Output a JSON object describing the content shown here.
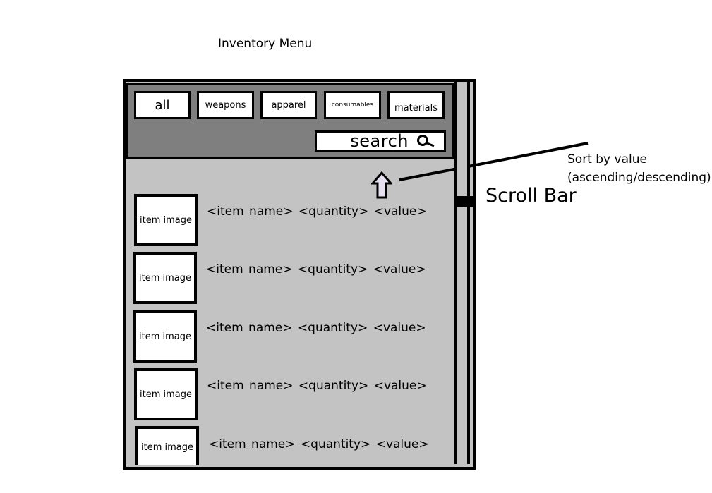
{
  "title": "Inventory Menu",
  "tabs": [
    {
      "id": "all",
      "label": "all"
    },
    {
      "id": "weapons",
      "label": "weapons"
    },
    {
      "id": "apparel",
      "label": "apparel"
    },
    {
      "id": "consumables",
      "label": "consumables"
    },
    {
      "id": "materials",
      "label": "materials"
    }
  ],
  "search": {
    "label": "search",
    "icon": "magnifier-icon"
  },
  "sort": {
    "icon": "up-arrow-icon"
  },
  "annotations": {
    "scroll_bar": "Scroll Bar",
    "sort_line1": "Sort by value",
    "sort_line2": "(ascending/descending)"
  },
  "items": [
    {
      "image": "item image",
      "name": "<item name>",
      "quantity": "<quantity>",
      "value": "<value>"
    },
    {
      "image": "item image",
      "name": "<item name>",
      "quantity": "<quantity>",
      "value": "<value>"
    },
    {
      "image": "item image",
      "name": "<item name>",
      "quantity": "<quantity>",
      "value": "<value>"
    },
    {
      "image": "item image",
      "name": "<item name>",
      "quantity": "<quantity>",
      "value": "<value>"
    },
    {
      "image": "item image",
      "name": "<item name>",
      "quantity": "<quantity>",
      "value": "<value>"
    }
  ],
  "colors": {
    "panel": "#c3c3c3",
    "header": "#7f7f7f",
    "border": "#000000",
    "arrow": "#e6e0f0"
  }
}
